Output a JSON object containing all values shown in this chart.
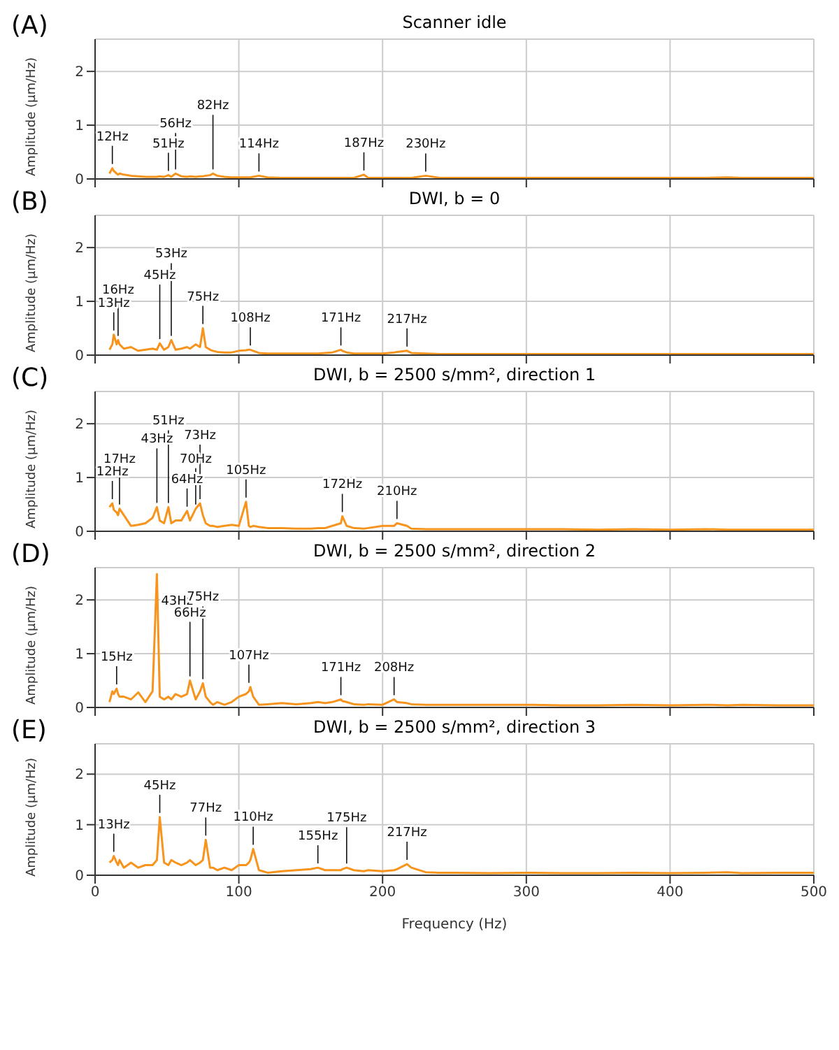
{
  "chart_data": [
    {
      "type": "line",
      "title": "Scanner idle",
      "ylabel": "Amplitude (µm/Hz)",
      "color": "#f7941d",
      "xlim": [
        0,
        500
      ],
      "xticks": [
        0,
        100,
        200,
        300,
        400,
        500
      ],
      "ylim": [
        0,
        2.6
      ],
      "yticks": [
        0,
        1,
        2
      ],
      "grid": true,
      "tick_labels": "y",
      "x": [
        10,
        12,
        13,
        15,
        16,
        17,
        20,
        25,
        30,
        35,
        40,
        43,
        45,
        48,
        51,
        53,
        56,
        60,
        64,
        66,
        70,
        73,
        75,
        77,
        80,
        82,
        85,
        90,
        95,
        100,
        105,
        107,
        108,
        110,
        114,
        120,
        130,
        140,
        150,
        155,
        160,
        165,
        171,
        172,
        175,
        180,
        187,
        190,
        200,
        208,
        210,
        217,
        220,
        230,
        240,
        250,
        275,
        300,
        325,
        350,
        375,
        400,
        425,
        440,
        450,
        475,
        500
      ],
      "values": [
        0.1,
        0.2,
        0.15,
        0.1,
        0.08,
        0.1,
        0.08,
        0.06,
        0.05,
        0.04,
        0.04,
        0.04,
        0.05,
        0.04,
        0.07,
        0.04,
        0.1,
        0.05,
        0.04,
        0.05,
        0.04,
        0.05,
        0.05,
        0.06,
        0.07,
        0.1,
        0.06,
        0.04,
        0.03,
        0.03,
        0.03,
        0.03,
        0.03,
        0.04,
        0.06,
        0.03,
        0.02,
        0.02,
        0.02,
        0.02,
        0.02,
        0.02,
        0.02,
        0.02,
        0.02,
        0.02,
        0.08,
        0.02,
        0.02,
        0.02,
        0.02,
        0.02,
        0.02,
        0.06,
        0.02,
        0.02,
        0.02,
        0.02,
        0.02,
        0.02,
        0.02,
        0.02,
        0.02,
        0.03,
        0.02,
        0.02,
        0.02
      ],
      "annotations": [
        "(A)",
        {
          "text": "12Hz",
          "x": 12,
          "y": 0.2
        },
        {
          "text": "51Hz",
          "x": 51,
          "y": 0.07
        },
        {
          "text": "56Hz",
          "x": 56,
          "y": 0.1
        },
        {
          "text": "82Hz",
          "x": 82,
          "y": 0.1
        },
        {
          "text": "114Hz",
          "x": 114,
          "y": 0.06
        },
        {
          "text": "187Hz",
          "x": 187,
          "y": 0.08
        },
        {
          "text": "230Hz",
          "x": 230,
          "y": 0.06
        }
      ]
    },
    {
      "type": "line",
      "title": "DWI, b = 0",
      "ylabel": "Amplitude (µm/Hz)",
      "color": "#f7941d",
      "xlim": [
        0,
        500
      ],
      "xticks": [
        0,
        100,
        200,
        300,
        400,
        500
      ],
      "ylim": [
        0,
        2.6
      ],
      "yticks": [
        0,
        1,
        2
      ],
      "grid": true,
      "tick_labels": "y",
      "x": [
        10,
        12,
        13,
        15,
        16,
        17,
        20,
        25,
        30,
        35,
        40,
        43,
        45,
        48,
        51,
        53,
        56,
        60,
        64,
        66,
        70,
        73,
        75,
        77,
        80,
        82,
        85,
        90,
        95,
        100,
        105,
        107,
        108,
        110,
        114,
        120,
        130,
        140,
        150,
        155,
        160,
        165,
        171,
        172,
        175,
        180,
        187,
        190,
        200,
        208,
        210,
        217,
        220,
        230,
        240,
        250,
        275,
        300,
        325,
        350,
        375,
        400,
        425,
        440,
        450,
        475,
        500
      ],
      "values": [
        0.1,
        0.2,
        0.38,
        0.2,
        0.28,
        0.2,
        0.12,
        0.15,
        0.08,
        0.1,
        0.12,
        0.1,
        0.22,
        0.1,
        0.15,
        0.28,
        0.1,
        0.12,
        0.15,
        0.12,
        0.2,
        0.15,
        0.5,
        0.15,
        0.1,
        0.08,
        0.06,
        0.05,
        0.05,
        0.08,
        0.09,
        0.1,
        0.1,
        0.08,
        0.04,
        0.03,
        0.03,
        0.03,
        0.03,
        0.03,
        0.04,
        0.05,
        0.1,
        0.08,
        0.05,
        0.03,
        0.03,
        0.03,
        0.03,
        0.05,
        0.06,
        0.08,
        0.04,
        0.03,
        0.02,
        0.02,
        0.02,
        0.02,
        0.02,
        0.02,
        0.02,
        0.02,
        0.02,
        0.02,
        0.02,
        0.02,
        0.02
      ],
      "annotations": [
        "(B)",
        {
          "text": "13Hz",
          "x": 13,
          "y": 0.38
        },
        {
          "text": "16Hz",
          "x": 16,
          "y": 0.28
        },
        {
          "text": "45Hz",
          "x": 45,
          "y": 0.22
        },
        {
          "text": "53Hz",
          "x": 53,
          "y": 0.28
        },
        {
          "text": "75Hz",
          "x": 75,
          "y": 0.5
        },
        {
          "text": "108Hz",
          "x": 108,
          "y": 0.1
        },
        {
          "text": "171Hz",
          "x": 171,
          "y": 0.1
        },
        {
          "text": "217Hz",
          "x": 217,
          "y": 0.08
        }
      ]
    },
    {
      "type": "line",
      "title": "DWI, b = 2500 s/mm², direction 1",
      "ylabel": "Amplitude (µm/Hz)",
      "color": "#f7941d",
      "xlim": [
        0,
        500
      ],
      "xticks": [
        0,
        100,
        200,
        300,
        400,
        500
      ],
      "ylim": [
        0,
        2.6
      ],
      "yticks": [
        0,
        1,
        2
      ],
      "grid": true,
      "tick_labels": "y",
      "x": [
        10,
        12,
        13,
        15,
        16,
        17,
        20,
        25,
        30,
        35,
        40,
        43,
        45,
        48,
        51,
        53,
        56,
        60,
        64,
        66,
        70,
        73,
        75,
        77,
        80,
        82,
        85,
        90,
        95,
        100,
        105,
        107,
        108,
        110,
        114,
        120,
        130,
        140,
        150,
        155,
        160,
        165,
        171,
        172,
        175,
        180,
        187,
        190,
        200,
        208,
        210,
        217,
        220,
        230,
        240,
        250,
        275,
        300,
        325,
        350,
        375,
        400,
        425,
        440,
        450,
        475,
        500
      ],
      "values": [
        0.45,
        0.52,
        0.4,
        0.35,
        0.3,
        0.42,
        0.3,
        0.1,
        0.12,
        0.15,
        0.25,
        0.45,
        0.2,
        0.15,
        0.45,
        0.15,
        0.2,
        0.2,
        0.38,
        0.2,
        0.42,
        0.52,
        0.3,
        0.15,
        0.1,
        0.1,
        0.08,
        0.1,
        0.12,
        0.1,
        0.55,
        0.1,
        0.08,
        0.1,
        0.08,
        0.06,
        0.06,
        0.05,
        0.05,
        0.06,
        0.06,
        0.1,
        0.15,
        0.28,
        0.1,
        0.06,
        0.05,
        0.06,
        0.1,
        0.1,
        0.15,
        0.1,
        0.05,
        0.04,
        0.04,
        0.04,
        0.04,
        0.04,
        0.04,
        0.03,
        0.04,
        0.03,
        0.04,
        0.03,
        0.03,
        0.03,
        0.03
      ],
      "annotations": [
        "(C)",
        {
          "text": "12Hz",
          "x": 12,
          "y": 0.52
        },
        {
          "text": "17Hz",
          "x": 17,
          "y": 0.42
        },
        {
          "text": "43Hz",
          "x": 43,
          "y": 0.45
        },
        {
          "text": "51Hz",
          "x": 51,
          "y": 0.45
        },
        {
          "text": "64Hz",
          "x": 64,
          "y": 0.38
        },
        {
          "text": "70Hz",
          "x": 70,
          "y": 0.42
        },
        {
          "text": "73Hz",
          "x": 73,
          "y": 0.52
        },
        {
          "text": "105Hz",
          "x": 105,
          "y": 0.55
        },
        {
          "text": "172Hz",
          "x": 172,
          "y": 0.28
        },
        {
          "text": "210Hz",
          "x": 210,
          "y": 0.15
        }
      ]
    },
    {
      "type": "line",
      "title": "DWI, b = 2500 s/mm², direction 2",
      "ylabel": "Amplitude (µm/Hz)",
      "color": "#f7941d",
      "xlim": [
        0,
        500
      ],
      "xticks": [
        0,
        100,
        200,
        300,
        400,
        500
      ],
      "ylim": [
        0,
        2.6
      ],
      "yticks": [
        0,
        1,
        2
      ],
      "grid": true,
      "tick_labels": "y",
      "x": [
        10,
        12,
        13,
        15,
        16,
        17,
        20,
        25,
        30,
        35,
        40,
        43,
        45,
        48,
        51,
        53,
        56,
        60,
        64,
        66,
        70,
        73,
        75,
        77,
        80,
        82,
        85,
        90,
        95,
        100,
        105,
        107,
        108,
        110,
        114,
        120,
        130,
        140,
        150,
        155,
        160,
        165,
        171,
        172,
        175,
        180,
        187,
        190,
        200,
        208,
        210,
        217,
        220,
        230,
        240,
        250,
        275,
        300,
        325,
        350,
        375,
        400,
        425,
        440,
        450,
        475,
        500
      ],
      "values": [
        0.1,
        0.3,
        0.25,
        0.35,
        0.25,
        0.2,
        0.2,
        0.15,
        0.28,
        0.1,
        0.3,
        2.48,
        0.2,
        0.15,
        0.2,
        0.15,
        0.25,
        0.2,
        0.25,
        0.5,
        0.15,
        0.3,
        0.45,
        0.2,
        0.1,
        0.05,
        0.1,
        0.05,
        0.1,
        0.2,
        0.25,
        0.3,
        0.38,
        0.2,
        0.05,
        0.06,
        0.08,
        0.06,
        0.08,
        0.1,
        0.08,
        0.1,
        0.15,
        0.12,
        0.1,
        0.06,
        0.05,
        0.06,
        0.05,
        0.15,
        0.1,
        0.08,
        0.06,
        0.05,
        0.05,
        0.05,
        0.05,
        0.05,
        0.04,
        0.04,
        0.05,
        0.04,
        0.05,
        0.04,
        0.05,
        0.04,
        0.04
      ],
      "annotations": [
        "(D)",
        {
          "text": "15Hz",
          "x": 15,
          "y": 0.35
        },
        {
          "text": "43Hz",
          "x": 43,
          "y": 2.48
        },
        {
          "text": "66Hz",
          "x": 66,
          "y": 0.5
        },
        {
          "text": "75Hz",
          "x": 75,
          "y": 0.45
        },
        {
          "text": "107Hz",
          "x": 107,
          "y": 0.38
        },
        {
          "text": "171Hz",
          "x": 171,
          "y": 0.15
        },
        {
          "text": "208Hz",
          "x": 208,
          "y": 0.15
        }
      ]
    },
    {
      "type": "line",
      "title": "DWI, b = 2500 s/mm², direction 3",
      "xlabel": "Frequency (Hz)",
      "ylabel": "Amplitude (µm/Hz)",
      "color": "#f7941d",
      "xlim": [
        0,
        500
      ],
      "xticks": [
        0,
        100,
        200,
        300,
        400,
        500
      ],
      "ylim": [
        0,
        2.6
      ],
      "yticks": [
        0,
        1,
        2
      ],
      "grid": true,
      "x": [
        10,
        12,
        13,
        15,
        16,
        17,
        20,
        25,
        30,
        35,
        40,
        43,
        45,
        48,
        51,
        53,
        56,
        60,
        64,
        66,
        70,
        73,
        75,
        77,
        80,
        82,
        85,
        90,
        95,
        100,
        105,
        107,
        108,
        110,
        114,
        120,
        130,
        140,
        150,
        155,
        160,
        165,
        171,
        172,
        175,
        180,
        187,
        190,
        200,
        208,
        210,
        217,
        220,
        230,
        240,
        250,
        275,
        300,
        325,
        350,
        375,
        400,
        425,
        440,
        450,
        475,
        500
      ],
      "values": [
        0.25,
        0.3,
        0.38,
        0.25,
        0.2,
        0.3,
        0.15,
        0.25,
        0.15,
        0.2,
        0.2,
        0.3,
        1.15,
        0.25,
        0.2,
        0.3,
        0.25,
        0.2,
        0.25,
        0.3,
        0.2,
        0.25,
        0.3,
        0.7,
        0.15,
        0.15,
        0.1,
        0.15,
        0.1,
        0.2,
        0.2,
        0.25,
        0.3,
        0.52,
        0.1,
        0.05,
        0.08,
        0.1,
        0.12,
        0.15,
        0.1,
        0.1,
        0.1,
        0.12,
        0.15,
        0.1,
        0.08,
        0.1,
        0.08,
        0.1,
        0.12,
        0.22,
        0.15,
        0.06,
        0.05,
        0.05,
        0.04,
        0.05,
        0.04,
        0.04,
        0.05,
        0.04,
        0.05,
        0.06,
        0.04,
        0.05,
        0.05
      ],
      "annotations": [
        "(E)",
        {
          "text": "13Hz",
          "x": 13,
          "y": 0.38
        },
        {
          "text": "45Hz",
          "x": 45,
          "y": 1.15
        },
        {
          "text": "77Hz",
          "x": 77,
          "y": 0.7
        },
        {
          "text": "110Hz",
          "x": 110,
          "y": 0.52
        },
        {
          "text": "155Hz",
          "x": 155,
          "y": 0.15
        },
        {
          "text": "175Hz",
          "x": 175,
          "y": 0.15
        },
        {
          "text": "217Hz",
          "x": 217,
          "y": 0.22
        }
      ]
    }
  ]
}
